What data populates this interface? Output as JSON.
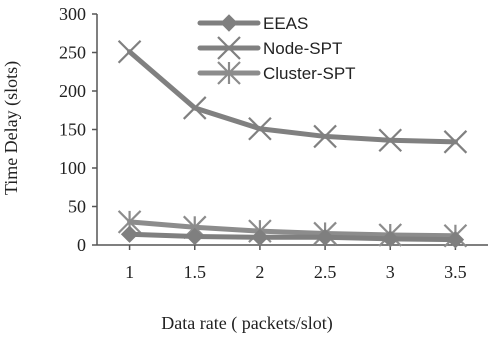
{
  "chart_data": {
    "type": "line",
    "title": "",
    "xlabel": "Data rate ( packets/slot)",
    "ylabel": "Time Delay (slots)",
    "x": [
      1,
      1.5,
      2,
      2.5,
      3,
      3.5
    ],
    "x_tick_labels": [
      "1",
      "1.5",
      "2",
      "2.5",
      "3",
      "3.5"
    ],
    "xlim": [
      0.75,
      3.75
    ],
    "y_ticks": [
      0,
      50,
      100,
      150,
      200,
      250,
      300
    ],
    "ylim": [
      0,
      300
    ],
    "grid": false,
    "legend_placement": "top-center",
    "series": [
      {
        "name": "EEAS",
        "marker": "diamond",
        "color": "#7f7f7f",
        "values": [
          14,
          11,
          10,
          10,
          8,
          7
        ]
      },
      {
        "name": "Node-SPT",
        "marker": "x",
        "color": "#808080",
        "values": [
          251,
          178,
          151,
          141,
          136,
          134
        ]
      },
      {
        "name": "Cluster-SPT",
        "marker": "asterisk",
        "color": "#8c8c8c",
        "values": [
          30,
          23,
          18,
          15,
          13,
          12
        ]
      }
    ]
  }
}
